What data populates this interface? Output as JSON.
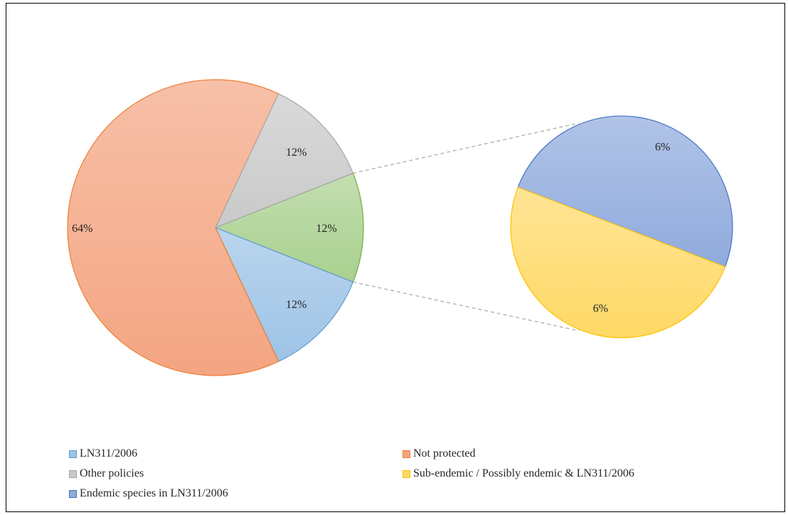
{
  "chart_data": {
    "type": "pie",
    "subtype": "pie-of-pie",
    "title": "",
    "main_pie": [
      {
        "name": "Not protected",
        "value": 64,
        "label": "64%",
        "color": "#F4A582",
        "edge": "#ED7D31"
      },
      {
        "name": "Other policies",
        "value": 12,
        "label": "12%",
        "color": "#C9C9C9",
        "edge": "#A5A5A5"
      },
      {
        "name": "Sub-endemic / Possibly endemic & LN311/2006 + Endemic species in LN311/2006",
        "value": 12,
        "label": "12%",
        "color": "#A9D08E",
        "edge": "#70AD47"
      },
      {
        "name": "LN311/2006",
        "value": 12,
        "label": "12%",
        "color": "#9DC3E6",
        "edge": "#5B9BD5"
      }
    ],
    "secondary_pie": [
      {
        "name": "Endemic species in LN311/2006",
        "value": 6,
        "label": "6%",
        "color": "#8FAADC",
        "edge": "#4472C4"
      },
      {
        "name": "Sub-endemic / Possibly endemic & LN311/2006",
        "value": 6,
        "label": "6%",
        "color": "#FFD966",
        "edge": "#FFC000"
      }
    ],
    "legend": [
      {
        "label": "LN311/2006",
        "color": "#9DC3E6",
        "edge": "#5B9BD5"
      },
      {
        "label": "Not protected",
        "color": "#F4A582",
        "edge": "#ED7D31"
      },
      {
        "label": "Other policies",
        "color": "#C9C9C9",
        "edge": "#A5A5A5"
      },
      {
        "label": "Sub-endemic / Possibly endemic & LN311/2006",
        "color": "#FFD966",
        "edge": "#FFC000"
      },
      {
        "label": "Endemic species in LN311/2006",
        "color": "#8FAADC",
        "edge": "#4472C4"
      }
    ],
    "legend_position": "bottom"
  }
}
